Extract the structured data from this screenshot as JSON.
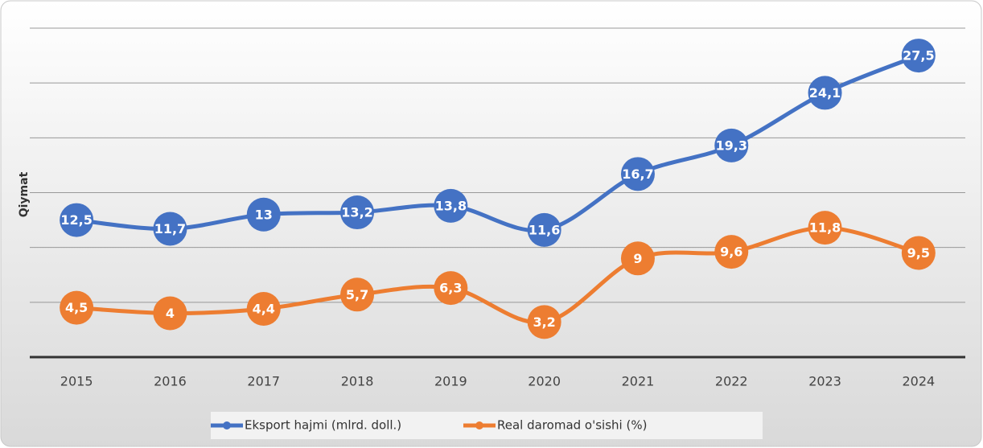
{
  "chart_data": {
    "type": "line",
    "y_label": "Qiymat",
    "categories": [
      "2015",
      "2016",
      "2017",
      "2018",
      "2019",
      "2020",
      "2021",
      "2022",
      "2023",
      "2024"
    ],
    "series": [
      {
        "name": "Eksport hajmi (mlrd. doll.)",
        "color": "#4472c4",
        "values": [
          12.5,
          11.7,
          13,
          13.2,
          13.8,
          11.6,
          16.7,
          19.3,
          24.1,
          27.5
        ],
        "value_labels": [
          "12,5",
          "11,7",
          "13",
          "13,2",
          "13,8",
          "11,6",
          "16,7",
          "19,3",
          "24,1",
          "27,5"
        ]
      },
      {
        "name": "Real daromad o'sishi (%)",
        "color": "#ed7d31",
        "values": [
          4.5,
          4,
          4.4,
          5.7,
          6.3,
          3.2,
          9,
          9.6,
          11.8,
          9.5
        ],
        "value_labels": [
          "4,5",
          "4",
          "4,4",
          "5,7",
          "6,3",
          "3,2",
          "9",
          "9,6",
          "11,8",
          "9,5"
        ]
      }
    ],
    "ylim": [
      0,
      30
    ],
    "yticks": [
      0,
      5,
      10,
      15,
      20,
      25,
      30
    ],
    "grid": true,
    "legend": "bottom"
  }
}
